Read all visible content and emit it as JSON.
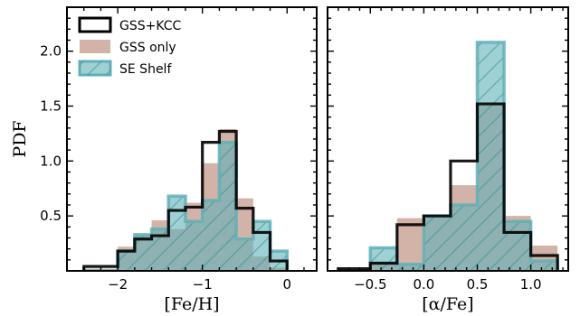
{
  "chart_data": [
    {
      "type": "histogram",
      "xlabel": "[Fe/H]",
      "ylabel": "PDF",
      "xlim": [
        -2.6,
        0.35
      ],
      "ylim": [
        0,
        2.4
      ],
      "xticks": [
        -2,
        -1,
        0
      ],
      "xtick_labels": [
        "−2",
        "−1",
        "0"
      ],
      "yticks": [
        0.5,
        1.0,
        1.5,
        2.0
      ],
      "ytick_labels": [
        "0.5",
        "1.0",
        "1.5",
        "2.0"
      ],
      "legend_position": "upper-left",
      "series": [
        {
          "name": "GSS only",
          "style": "filled",
          "color": "#c49a8a",
          "bins": [
            -2.4,
            -2.0,
            -1.8,
            -1.6,
            -1.4,
            -1.2,
            -1.0,
            -0.8,
            -0.6,
            -0.4,
            -0.2,
            0.0
          ],
          "values": [
            0.02,
            0.22,
            0.33,
            0.46,
            0.38,
            0.62,
            0.98,
            1.29,
            0.66,
            0.13,
            0.03
          ]
        },
        {
          "name": "SE Shelf",
          "style": "filled-hatched",
          "color": "#5fb0b7",
          "bins": [
            -2.4,
            -2.0,
            -1.8,
            -1.6,
            -1.4,
            -1.2,
            -1.0,
            -0.8,
            -0.6,
            -0.4,
            -0.2,
            0.0
          ],
          "values": [
            0.0,
            0.18,
            0.33,
            0.38,
            0.68,
            0.45,
            0.64,
            1.17,
            0.29,
            0.45,
            0.18
          ]
        },
        {
          "name": "GSS+KCC",
          "style": "step",
          "color": "#000000",
          "bins": [
            -2.4,
            -2.0,
            -1.8,
            -1.6,
            -1.4,
            -1.2,
            -1.0,
            -0.8,
            -0.6,
            -0.4,
            -0.2,
            0.0
          ],
          "values": [
            0.04,
            0.18,
            0.29,
            0.32,
            0.55,
            0.58,
            1.17,
            1.27,
            0.57,
            0.35,
            0.09
          ]
        }
      ]
    },
    {
      "type": "histogram",
      "xlabel": "[α/Fe]",
      "ylabel": "",
      "xlim": [
        -0.9,
        1.35
      ],
      "ylim": [
        0,
        2.4
      ],
      "xticks": [
        -0.5,
        0.0,
        0.5,
        1.0
      ],
      "xtick_labels": [
        "−0.5",
        "0.0",
        "0.5",
        "1.0"
      ],
      "yticks": [
        0.5,
        1.0,
        1.5,
        2.0
      ],
      "series": [
        {
          "name": "GSS only",
          "style": "filled",
          "color": "#c49a8a",
          "bins": [
            -0.8,
            -0.5,
            -0.25,
            0.0,
            0.25,
            0.5,
            0.75,
            1.0,
            1.25
          ],
          "values": [
            0.0,
            0.08,
            0.48,
            0.5,
            0.78,
            1.52,
            0.5,
            0.23
          ]
        },
        {
          "name": "SE Shelf",
          "style": "filled-hatched",
          "color": "#5fb0b7",
          "bins": [
            -0.8,
            -0.5,
            -0.25,
            0.0,
            0.25,
            0.5,
            0.75,
            1.0,
            1.25
          ],
          "values": [
            0.0,
            0.21,
            0.06,
            0.5,
            0.6,
            2.08,
            0.45,
            0.09
          ]
        },
        {
          "name": "GSS+KCC",
          "style": "step",
          "color": "#000000",
          "bins": [
            -0.8,
            -0.5,
            -0.25,
            0.0,
            0.25,
            0.5,
            0.75,
            1.0,
            1.25
          ],
          "values": [
            0.02,
            0.07,
            0.42,
            0.5,
            1.0,
            1.52,
            0.35,
            0.14
          ]
        }
      ]
    }
  ],
  "legend": {
    "items": [
      {
        "label": "GSS+KCC",
        "style": "step",
        "color": "#000000"
      },
      {
        "label": "GSS only",
        "style": "filled",
        "color": "#c49a8a"
      },
      {
        "label": "SE Shelf",
        "style": "filled-hatched",
        "color": "#5fb0b7"
      }
    ]
  }
}
